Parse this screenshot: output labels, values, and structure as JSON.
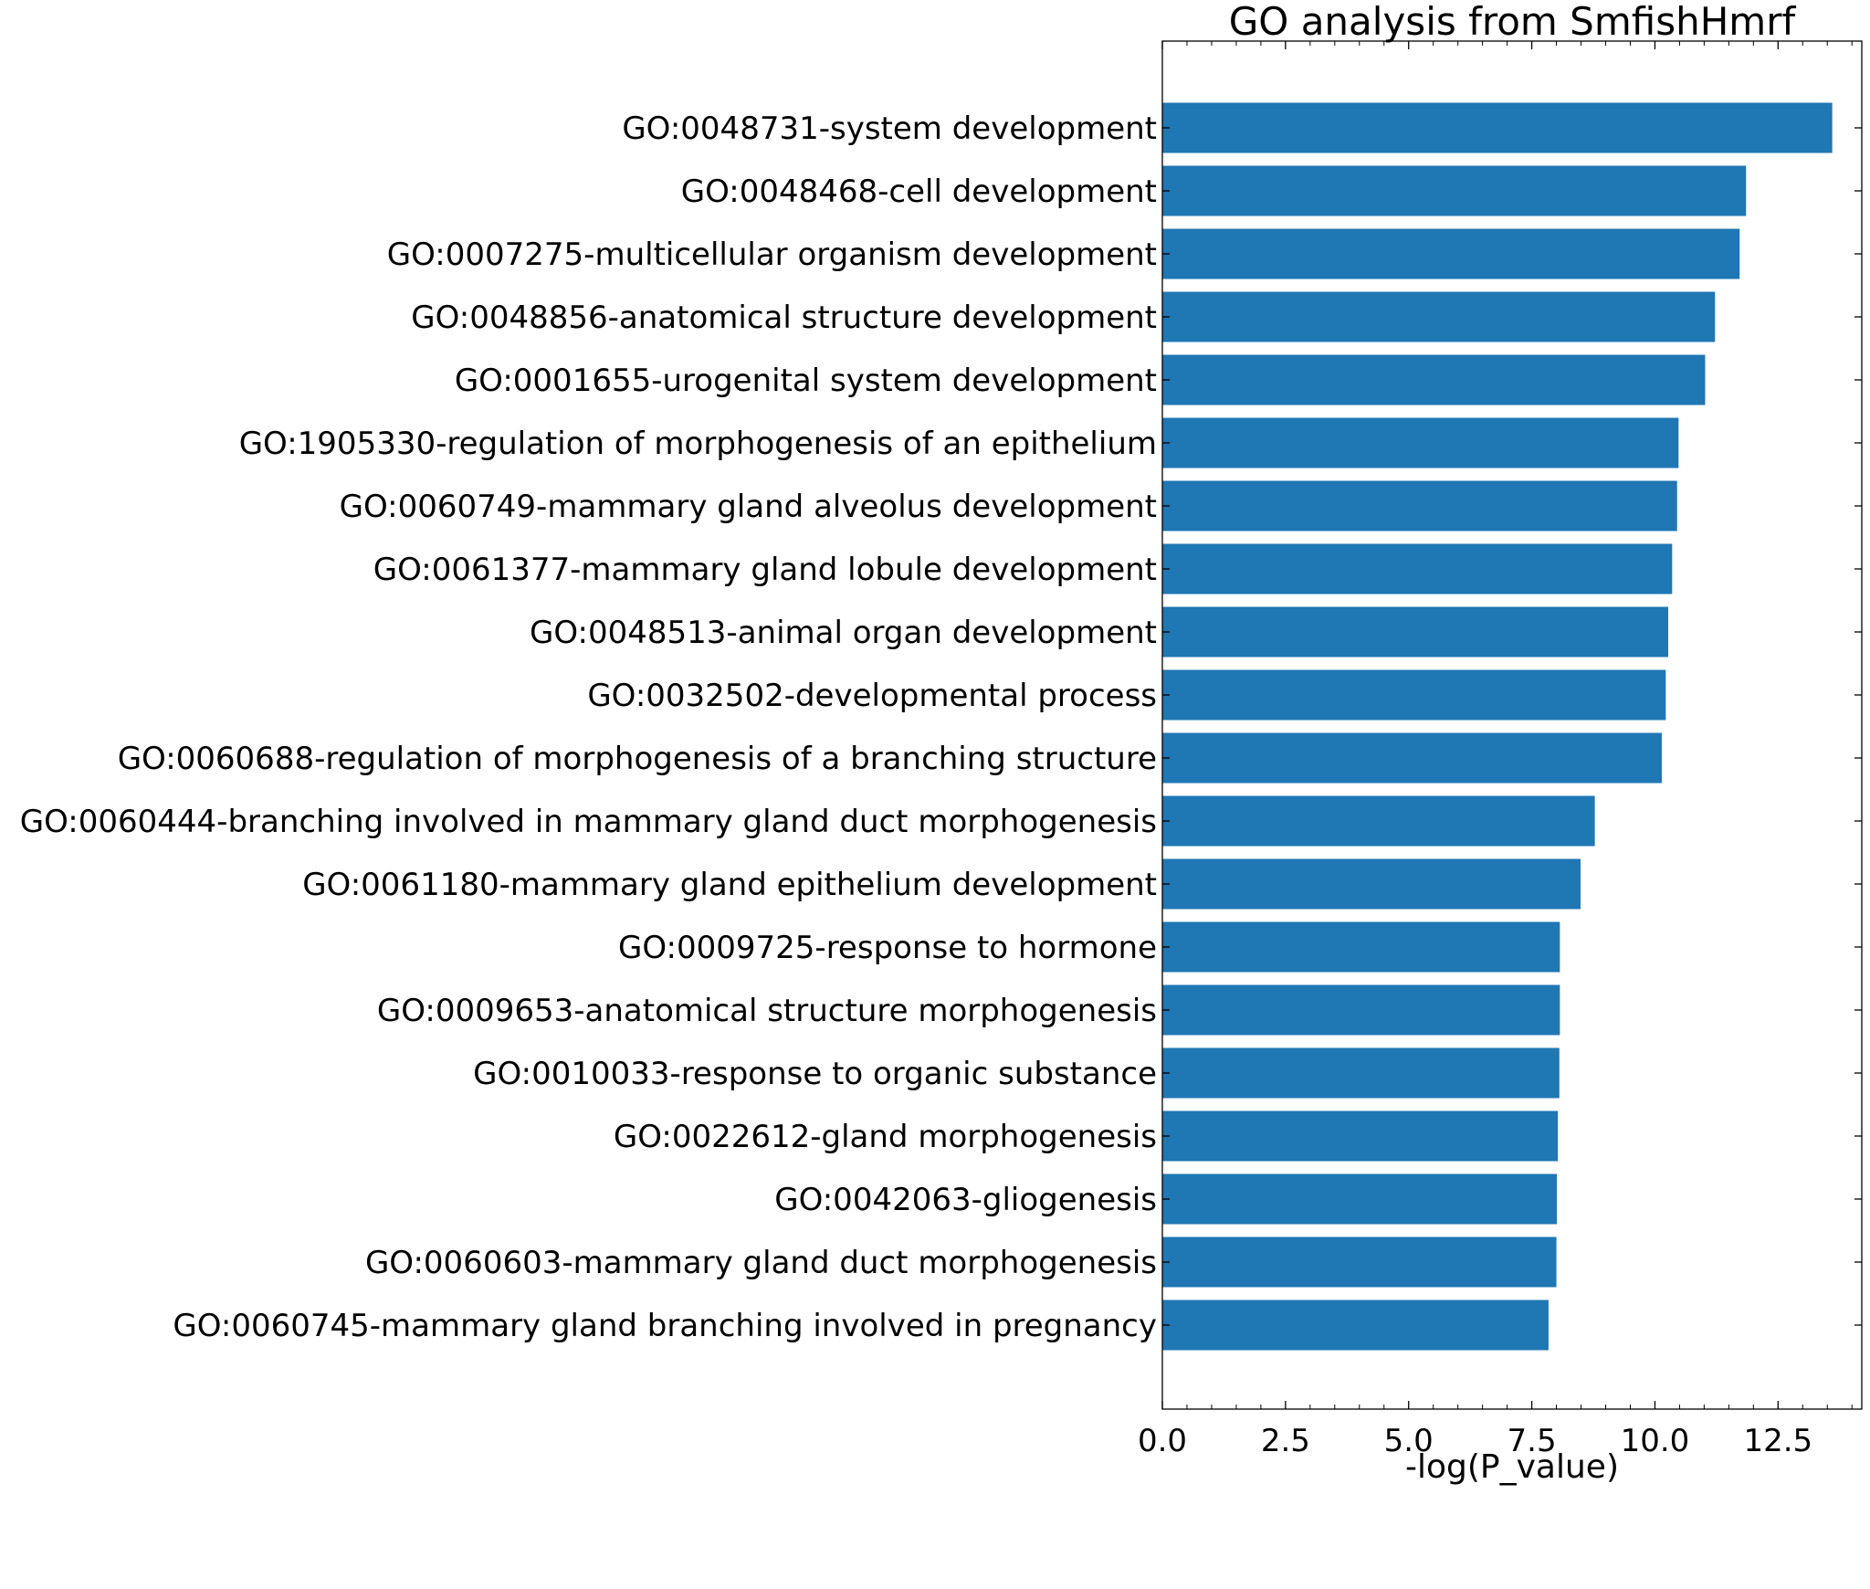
{
  "chart_data": {
    "type": "bar",
    "orientation": "horizontal",
    "title": "GO analysis from SmfishHmrf",
    "xlabel": "-log(P_value)",
    "ylabel": "",
    "xlim": [
      0,
      14.2
    ],
    "xticks": [
      0.0,
      2.5,
      5.0,
      7.5,
      10.0,
      12.5
    ],
    "xtick_labels": [
      "0.0",
      "2.5",
      "5.0",
      "7.5",
      "10.0",
      "12.5"
    ],
    "grid": false,
    "bar_color": "#1f77b4",
    "categories": [
      "GO:0048731-system development",
      "GO:0048468-cell development",
      "GO:0007275-multicellular organism development",
      "GO:0048856-anatomical structure development",
      "GO:0001655-urogenital system development",
      "GO:1905330-regulation of morphogenesis of an epithelium",
      "GO:0060749-mammary gland alveolus development",
      "GO:0061377-mammary gland lobule development",
      "GO:0048513-animal organ development",
      "GO:0032502-developmental process",
      "GO:0060688-regulation of morphogenesis of a branching structure",
      "GO:0060444-branching involved in mammary gland duct morphogenesis",
      "GO:0061180-mammary gland epithelium development",
      "GO:0009725-response to hormone",
      "GO:0009653-anatomical structure morphogenesis",
      "GO:0010033-response to organic substance",
      "GO:0022612-gland morphogenesis",
      "GO:0042063-gliogenesis",
      "GO:0060603-mammary gland duct morphogenesis",
      "GO:0060745-mammary gland branching involved in pregnancy"
    ],
    "values": [
      13.6,
      11.85,
      11.72,
      11.22,
      11.02,
      10.48,
      10.45,
      10.35,
      10.27,
      10.22,
      10.14,
      8.78,
      8.49,
      8.07,
      8.07,
      8.06,
      8.03,
      8.01,
      8.0,
      7.84
    ]
  }
}
